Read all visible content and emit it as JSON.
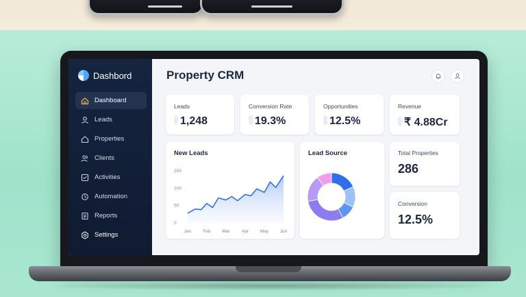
{
  "sidebar": {
    "brand": "Dashbord",
    "items": [
      {
        "label": "Dashboard",
        "icon": "home-icon"
      },
      {
        "label": "Leads",
        "icon": "user-icon"
      },
      {
        "label": "Properties",
        "icon": "building-icon"
      },
      {
        "label": "Clients",
        "icon": "users-icon"
      },
      {
        "label": "Activities",
        "icon": "activity-icon"
      },
      {
        "label": "Automation",
        "icon": "automation-icon"
      },
      {
        "label": "Reports",
        "icon": "report-icon"
      },
      {
        "label": "Settings",
        "icon": "gear-icon"
      }
    ],
    "active_index": 0
  },
  "header": {
    "title": "Property CRM"
  },
  "kpis": [
    {
      "label": "Leads",
      "value": "1,248"
    },
    {
      "label": "Conversion Rate",
      "value": "19.3%"
    },
    {
      "label": "Opportunities",
      "value": "12.5%"
    },
    {
      "label": "Revenue",
      "value": "₹ 4.88Cr"
    }
  ],
  "side_cards": [
    {
      "label": "Total Properties",
      "value": "286"
    },
    {
      "label": "Conversion",
      "value": "12.5%"
    }
  ],
  "colors": {
    "sidebar": "#15243f",
    "accent": "#2f6fe8",
    "line": "#2f6fe8"
  },
  "chart_data": [
    {
      "type": "area",
      "title": "New Leads",
      "categories": [
        "Jan",
        "Feb",
        "Mar",
        "Apr",
        "May",
        "Jun"
      ],
      "x": [
        0,
        0.4,
        0.7,
        1.0,
        1.3,
        1.6,
        2.0,
        2.3,
        2.6,
        3.0,
        3.3,
        3.6,
        4.0,
        4.3,
        4.6,
        5.0
      ],
      "values": [
        28,
        40,
        38,
        56,
        44,
        72,
        66,
        76,
        64,
        82,
        78,
        98,
        88,
        118,
        102,
        136
      ],
      "yticks": [
        "150",
        "100",
        "50",
        "0"
      ],
      "ylim": [
        0,
        150
      ]
    },
    {
      "type": "pie",
      "title": "Lead Source",
      "slices": [
        {
          "value": 18,
          "color": "#2f6fe8"
        },
        {
          "value": 14,
          "color": "#9cc2f5"
        },
        {
          "value": 10,
          "color": "#5b95f0"
        },
        {
          "value": 30,
          "color": "#8b7cf0"
        },
        {
          "value": 18,
          "color": "#b79af3"
        },
        {
          "value": 10,
          "color": "#f09ee8"
        }
      ]
    }
  ]
}
